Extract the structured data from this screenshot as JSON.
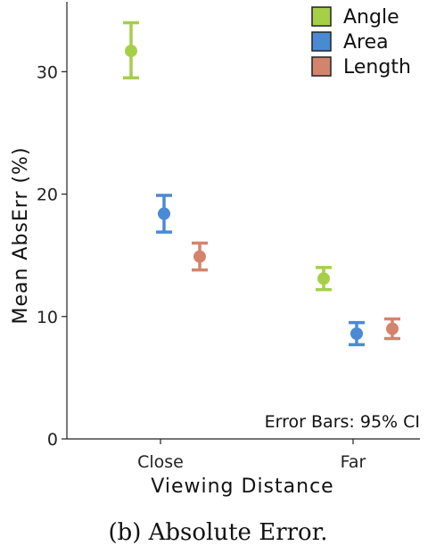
{
  "chart_data": {
    "type": "scatter",
    "categories": [
      "Close",
      "Far"
    ],
    "xlabel": "Viewing Distance",
    "ylabel": "Mean AbsErr (%)",
    "ylim": [
      0,
      36
    ],
    "yticks": [
      0,
      10,
      20,
      30
    ],
    "grid": false,
    "legend_position": "top-right",
    "annotation": "Error Bars: 95% CI",
    "series": [
      {
        "name": "Angle",
        "color": "#a6cf48",
        "values": [
          31.7,
          13.1
        ],
        "ci_low": [
          29.5,
          12.2
        ],
        "ci_high": [
          34.0,
          14.0
        ]
      },
      {
        "name": "Area",
        "color": "#4a8ad4",
        "values": [
          18.4,
          8.6
        ],
        "ci_low": [
          16.9,
          7.7
        ],
        "ci_high": [
          19.9,
          9.5
        ]
      },
      {
        "name": "Length",
        "color": "#d4846c",
        "values": [
          14.9,
          9.0
        ],
        "ci_low": [
          13.8,
          8.2
        ],
        "ci_high": [
          16.0,
          9.8
        ]
      }
    ]
  },
  "caption": "(b)  Absolute Error."
}
